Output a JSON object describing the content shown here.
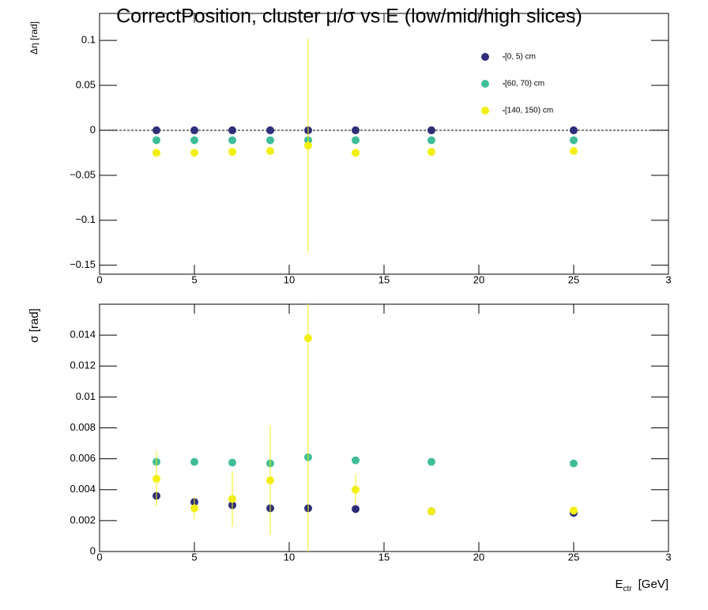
{
  "chart_data": [
    {
      "type": "scatter",
      "title": "CorrectPosition, cluster   μ/σ vs E  (low/mid/high slices)",
      "y_label": "Δη [rad]",
      "x": [
        3,
        5,
        7,
        9,
        11,
        13.5,
        17.5,
        25
      ],
      "xlim": [
        0,
        30
      ],
      "xticks": [
        0,
        5,
        10,
        15,
        20,
        25,
        {
          "value": 30,
          "label": "3"
        }
      ],
      "ylim": [
        -0.16,
        0.13
      ],
      "yticks": [
        {
          "value": -0.15,
          "label": "−0.15"
        },
        {
          "value": -0.1,
          "label": "−0.1"
        },
        {
          "value": -0.05,
          "label": "−0.05"
        },
        0,
        0.05,
        0.1
      ],
      "zero_line": true,
      "legend": "top-right",
      "series": [
        {
          "name": "[0, 5) cm",
          "color": "#2e2f78",
          "values": [
            0,
            0,
            0,
            0,
            0,
            0,
            0,
            0
          ]
        },
        {
          "name": "[60, 70) cm",
          "color": "#3fbd98",
          "values": [
            -0.011,
            -0.011,
            -0.011,
            -0.011,
            -0.011,
            -0.011,
            -0.011,
            -0.011
          ]
        },
        {
          "name": "[140, 150) cm",
          "color": "#f2ef10",
          "values": [
            -0.025,
            -0.025,
            -0.024,
            -0.023,
            -0.017,
            -0.025,
            -0.024,
            -0.023
          ],
          "errors": [
            0,
            0,
            0,
            0,
            0.119,
            0,
            0,
            0
          ]
        }
      ]
    },
    {
      "type": "scatter",
      "y_label": "σ  [rad]",
      "x_label": {
        "main": "E",
        "sub": "ctr",
        "unit": "[GeV]"
      },
      "x": [
        3,
        5,
        7,
        9,
        11,
        13.5,
        17.5,
        25
      ],
      "xlim": [
        0,
        30
      ],
      "xticks": [
        0,
        5,
        10,
        15,
        20,
        25,
        {
          "value": 30,
          "label": "3"
        }
      ],
      "ylim": [
        0,
        0.016
      ],
      "yticks": [
        0,
        0.002,
        0.004,
        0.006,
        0.008,
        0.01,
        0.012,
        0.014
      ],
      "series": [
        {
          "name": "[0, 5) cm",
          "color": "#2e2f78",
          "values": [
            0.0036,
            0.0032,
            0.003,
            0.0028,
            0.0028,
            0.00275,
            0.0026,
            0.0025
          ]
        },
        {
          "name": "[60, 70) cm",
          "color": "#3fbd98",
          "values": [
            0.0058,
            0.0058,
            0.00575,
            0.0057,
            0.0061,
            0.0059,
            0.0058,
            0.0057
          ]
        },
        {
          "name": "[140, 150) cm",
          "color": "#f2ef10",
          "values": [
            0.0047,
            0.0028,
            0.0034,
            0.0046,
            0.0138,
            0.004,
            0.0026,
            0.00265
          ],
          "errors": [
            0.0018,
            0.0007,
            0.0018,
            0.0035,
            0.016,
            0.001,
            0,
            0
          ]
        }
      ]
    }
  ]
}
